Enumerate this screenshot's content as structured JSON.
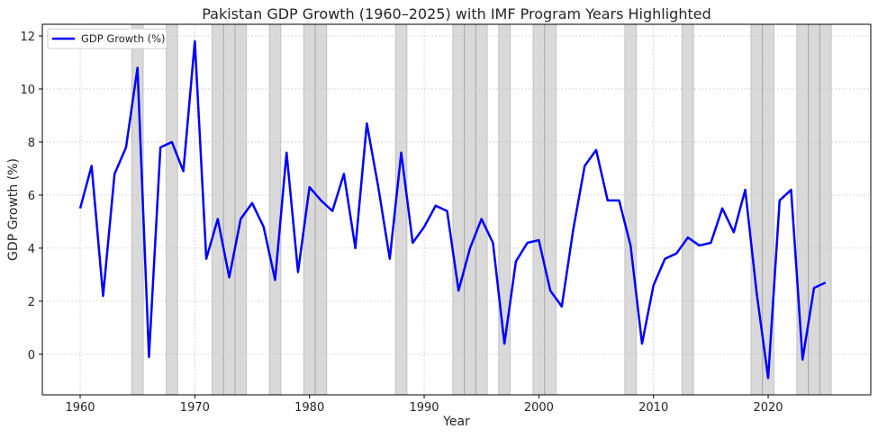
{
  "chart_data": {
    "type": "line",
    "title": "Pakistan GDP Growth (1960–2025) with IMF Program Years Highlighted",
    "xlabel": "Year",
    "ylabel": "GDP Growth (%)",
    "xlim": [
      1956.7,
      2028.95
    ],
    "ylim": [
      -1.53,
      12.44
    ],
    "xticks": [
      1960,
      1970,
      1980,
      1990,
      2000,
      2010,
      2020
    ],
    "yticks": [
      0,
      2,
      4,
      6,
      8,
      10,
      12
    ],
    "grid": true,
    "legend": {
      "position": "top-left",
      "entries": [
        "GDP Growth (%)"
      ]
    },
    "series": [
      {
        "name": "GDP Growth (%)",
        "color": "#0000ff",
        "x": [
          1960,
          1961,
          1962,
          1963,
          1964,
          1965,
          1966,
          1967,
          1968,
          1969,
          1970,
          1971,
          1972,
          1973,
          1974,
          1975,
          1976,
          1977,
          1978,
          1979,
          1980,
          1981,
          1982,
          1983,
          1984,
          1985,
          1986,
          1987,
          1988,
          1989,
          1990,
          1991,
          1992,
          1993,
          1994,
          1995,
          1996,
          1997,
          1998,
          1999,
          2000,
          2001,
          2002,
          2003,
          2004,
          2005,
          2006,
          2007,
          2008,
          2009,
          2010,
          2011,
          2012,
          2013,
          2014,
          2015,
          2016,
          2017,
          2018,
          2019,
          2020,
          2021,
          2022,
          2023,
          2024,
          2025
        ],
        "values": [
          5.5,
          7.1,
          2.2,
          6.8,
          7.8,
          10.8,
          -0.1,
          7.8,
          8.0,
          6.9,
          11.8,
          3.6,
          5.1,
          2.9,
          5.1,
          5.7,
          4.8,
          2.8,
          7.6,
          3.1,
          6.3,
          5.8,
          5.4,
          6.8,
          4.0,
          8.7,
          6.3,
          3.6,
          7.6,
          4.2,
          4.8,
          5.6,
          5.4,
          2.4,
          4.0,
          5.1,
          4.2,
          0.4,
          3.5,
          4.2,
          4.3,
          2.4,
          1.8,
          4.7,
          7.1,
          7.7,
          5.8,
          5.8,
          4.1,
          0.4,
          2.6,
          3.6,
          3.8,
          4.4,
          4.1,
          4.2,
          5.5,
          4.6,
          6.2,
          2.3,
          -0.9,
          5.8,
          6.2,
          -0.2,
          2.5,
          2.7
        ]
      }
    ],
    "imf_program_years": [
      1965,
      1968,
      1972,
      1973,
      1974,
      1977,
      1980,
      1981,
      1988,
      1993,
      1994,
      1995,
      1997,
      2000,
      2001,
      2008,
      2013,
      2019,
      2020,
      2023,
      2024,
      2025
    ],
    "band_color": "#808080"
  }
}
